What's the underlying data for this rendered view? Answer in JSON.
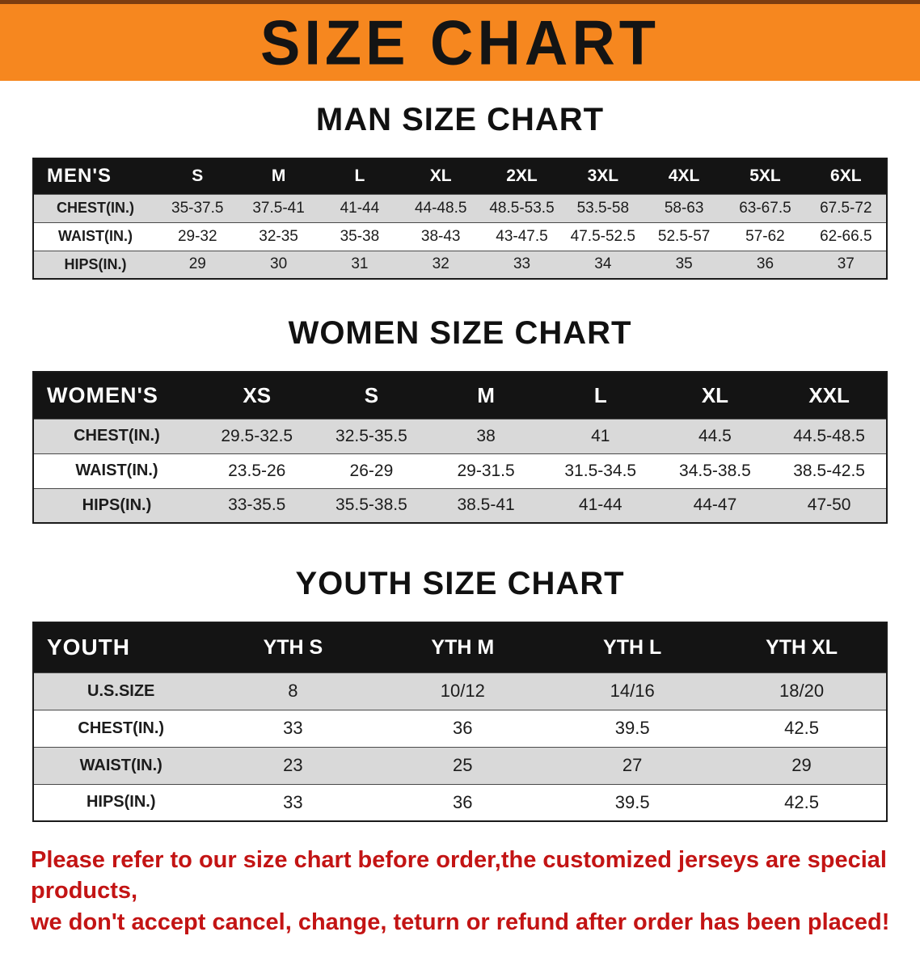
{
  "banner": {
    "title": "SIZE CHART"
  },
  "colors": {
    "banner_bg": "#f6871f",
    "banner_edge": "#7c3d10",
    "row_stripe": "#d9d9d9",
    "note_red": "#c31414"
  },
  "sections": [
    {
      "heading": "MAN SIZE CHART",
      "table": {
        "category": "MEN'S",
        "columns": [
          "S",
          "M",
          "L",
          "XL",
          "2XL",
          "3XL",
          "4XL",
          "5XL",
          "6XL"
        ],
        "rows": [
          {
            "label": "CHEST(IN.)",
            "values": [
              "35-37.5",
              "37.5-41",
              "41-44",
              "44-48.5",
              "48.5-53.5",
              "53.5-58",
              "58-63",
              "63-67.5",
              "67.5-72"
            ]
          },
          {
            "label": "WAIST(IN.)",
            "values": [
              "29-32",
              "32-35",
              "35-38",
              "38-43",
              "43-47.5",
              "47.5-52.5",
              "52.5-57",
              "57-62",
              "62-66.5"
            ]
          },
          {
            "label": "HIPS(IN.)",
            "values": [
              "29",
              "30",
              "31",
              "32",
              "33",
              "34",
              "35",
              "36",
              "37"
            ]
          }
        ]
      }
    },
    {
      "heading": "WOMEN SIZE CHART",
      "table": {
        "category": "WOMEN'S",
        "columns": [
          "XS",
          "S",
          "M",
          "L",
          "XL",
          "XXL"
        ],
        "rows": [
          {
            "label": "CHEST(IN.)",
            "values": [
              "29.5-32.5",
              "32.5-35.5",
              "38",
              "41",
              "44.5",
              "44.5-48.5"
            ]
          },
          {
            "label": "WAIST(IN.)",
            "values": [
              "23.5-26",
              "26-29",
              "29-31.5",
              "31.5-34.5",
              "34.5-38.5",
              "38.5-42.5"
            ]
          },
          {
            "label": "HIPS(IN.)",
            "values": [
              "33-35.5",
              "35.5-38.5",
              "38.5-41",
              "41-44",
              "44-47",
              "47-50"
            ]
          }
        ]
      }
    },
    {
      "heading": "YOUTH SIZE CHART",
      "table": {
        "category": "YOUTH",
        "columns": [
          "YTH S",
          "YTH M",
          "YTH L",
          "YTH XL"
        ],
        "rows": [
          {
            "label": "U.S.SIZE",
            "values": [
              "8",
              "10/12",
              "14/16",
              "18/20"
            ]
          },
          {
            "label": "CHEST(IN.)",
            "values": [
              "33",
              "36",
              "39.5",
              "42.5"
            ]
          },
          {
            "label": "WAIST(IN.)",
            "values": [
              "23",
              "25",
              "27",
              "29"
            ]
          },
          {
            "label": "HIPS(IN.)",
            "values": [
              "33",
              "36",
              "39.5",
              "42.5"
            ]
          }
        ]
      }
    }
  ],
  "note": {
    "line1": "Please refer to our size chart before order,the customized jerseys are special products,",
    "line2": "we don't accept cancel, change, teturn or refund after order has been placed!"
  }
}
